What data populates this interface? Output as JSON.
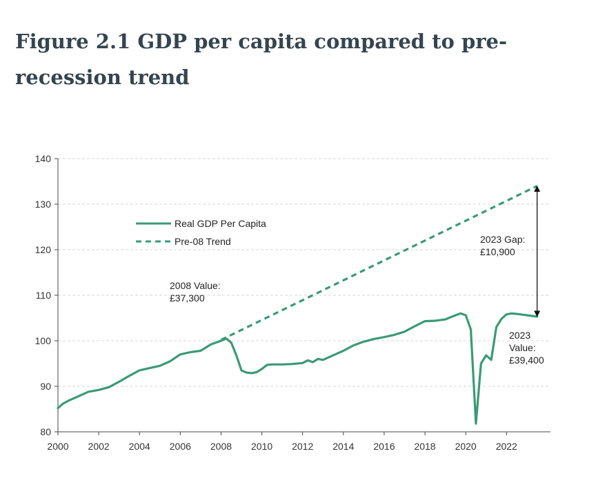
{
  "title": "Figure 2.1 GDP per capita compared to pre-recession trend",
  "colors": {
    "series": "#3a9a74",
    "grid": "#d6d6d6",
    "axis": "#444444"
  },
  "chart_data": {
    "type": "line",
    "title": "Figure 2.1 GDP per capita compared to pre-recession trend",
    "xlabel": "",
    "ylabel": "",
    "xlim": [
      2000,
      2023.75
    ],
    "ylim": [
      80,
      140
    ],
    "x_ticks": [
      "2000",
      "2002",
      "2004",
      "2006",
      "2008",
      "2010",
      "2012",
      "2014",
      "2016",
      "2018",
      "2020",
      "2022"
    ],
    "y_ticks": [
      "80",
      "90",
      "100",
      "110",
      "120",
      "130",
      "140"
    ],
    "grid": true,
    "legend_position": "top-left",
    "series": [
      {
        "name": "Real GDP Per Capita",
        "style": "solid",
        "x": [
          2000,
          2000.25,
          2000.5,
          2000.75,
          2001,
          2001.5,
          2002,
          2002.5,
          2003,
          2003.5,
          2004,
          2004.5,
          2005,
          2005.5,
          2006,
          2006.5,
          2007,
          2007.5,
          2008,
          2008.25,
          2008.5,
          2008.75,
          2009,
          2009.25,
          2009.5,
          2009.75,
          2010,
          2010.25,
          2010.5,
          2011,
          2011.5,
          2012,
          2012.25,
          2012.5,
          2012.75,
          2013,
          2013.5,
          2014,
          2014.5,
          2015,
          2015.5,
          2016,
          2016.5,
          2017,
          2017.5,
          2018,
          2018.5,
          2019,
          2019.5,
          2019.75,
          2020,
          2020.25,
          2020.5,
          2020.75,
          2021,
          2021.25,
          2021.5,
          2021.75,
          2022,
          2022.25,
          2022.5,
          2023,
          2023.5
        ],
        "y": [
          85.2,
          86.2,
          86.8,
          87.3,
          87.8,
          88.8,
          89.2,
          89.8,
          91.0,
          92.3,
          93.5,
          94.0,
          94.5,
          95.5,
          97.0,
          97.5,
          97.8,
          99.2,
          100.0,
          100.5,
          99.6,
          96.8,
          93.5,
          93.0,
          92.9,
          93.1,
          93.8,
          94.7,
          94.8,
          94.8,
          94.9,
          95.1,
          95.7,
          95.3,
          96.0,
          95.8,
          96.8,
          97.8,
          99.0,
          99.8,
          100.4,
          100.8,
          101.3,
          102.0,
          103.2,
          104.3,
          104.4,
          104.7,
          105.6,
          106.0,
          105.6,
          102.5,
          81.8,
          95.0,
          96.8,
          95.8,
          103.0,
          104.8,
          105.8,
          106.0,
          105.9,
          105.6,
          105.3
        ]
      },
      {
        "name": "Pre-08 Trend",
        "style": "dashed",
        "x": [
          2008,
          2023.5
        ],
        "y": [
          100.2,
          134.0
        ]
      }
    ],
    "annotations": [
      {
        "lines": [
          "2008 Value:",
          "£37,300"
        ],
        "x": 2008,
        "y": 100
      },
      {
        "lines": [
          "2023 Gap:",
          "£10,900"
        ],
        "x": 2023.5,
        "y": 119.7
      },
      {
        "lines": [
          "2023",
          "Value:",
          "£39,400"
        ],
        "x": 2023.5,
        "y": 105.3
      }
    ],
    "gap_arrow": {
      "x": 2023.5,
      "y_from": 105.3,
      "y_to": 134.0
    }
  }
}
